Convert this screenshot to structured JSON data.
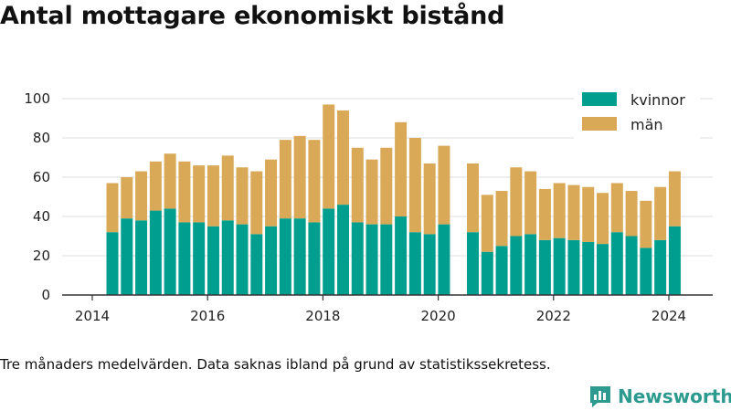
{
  "title": "Antal mottagare ekonomiskt bistånd",
  "caption": "Tre månaders medelvärden. Data saknas ibland på grund av statistikssekretess.",
  "brand": {
    "name": "Newsworthy",
    "icon": "newsworthy-logo-icon",
    "color": "#2c9a8e"
  },
  "colors": {
    "kvinnor": "#009e8e",
    "man": "#d9a957",
    "axis": "#333333",
    "grid": "#dddddd"
  },
  "chart_data": {
    "type": "bar",
    "stacked": true,
    "xlabel": "",
    "ylabel": "",
    "ylim": [
      0,
      105
    ],
    "yticks": [
      0,
      20,
      40,
      60,
      80,
      100
    ],
    "xticks": [
      "2014",
      "2016",
      "2018",
      "2020",
      "2022",
      "2024"
    ],
    "grid": true,
    "legend": "top-right",
    "categories": [
      "2014-Q2",
      "2014-Q3",
      "2014-Q4",
      "2015-Q1",
      "2015-Q2",
      "2015-Q3",
      "2015-Q4",
      "2016-Q1",
      "2016-Q2",
      "2016-Q3",
      "2016-Q4",
      "2017-Q1",
      "2017-Q2",
      "2017-Q3",
      "2017-Q4",
      "2018-Q1",
      "2018-Q2",
      "2018-Q3",
      "2018-Q4",
      "2019-Q1",
      "2019-Q2",
      "2019-Q3",
      "2019-Q4",
      "2020-Q1",
      "2020-Q2",
      "2020-Q3",
      "2020-Q4",
      "2021-Q1",
      "2021-Q2",
      "2021-Q3",
      "2021-Q4",
      "2022-Q1",
      "2022-Q2",
      "2022-Q3",
      "2022-Q4",
      "2023-Q1",
      "2023-Q2",
      "2023-Q3",
      "2023-Q4",
      "2024-Q1"
    ],
    "series": [
      {
        "name": "kvinnor",
        "values": [
          32,
          39,
          38,
          43,
          44,
          37,
          37,
          35,
          38,
          36,
          31,
          35,
          39,
          39,
          37,
          44,
          46,
          37,
          36,
          36,
          40,
          32,
          31,
          36,
          null,
          32,
          22,
          25,
          30,
          31,
          28,
          29,
          28,
          27,
          26,
          32,
          30,
          24,
          28,
          35
        ]
      },
      {
        "name": "män",
        "values": [
          25,
          21,
          25,
          25,
          28,
          31,
          29,
          31,
          33,
          29,
          32,
          34,
          40,
          42,
          42,
          53,
          48,
          38,
          33,
          39,
          48,
          48,
          36,
          40,
          null,
          35,
          29,
          28,
          35,
          32,
          26,
          28,
          28,
          28,
          26,
          25,
          23,
          24,
          27,
          28
        ]
      }
    ]
  }
}
